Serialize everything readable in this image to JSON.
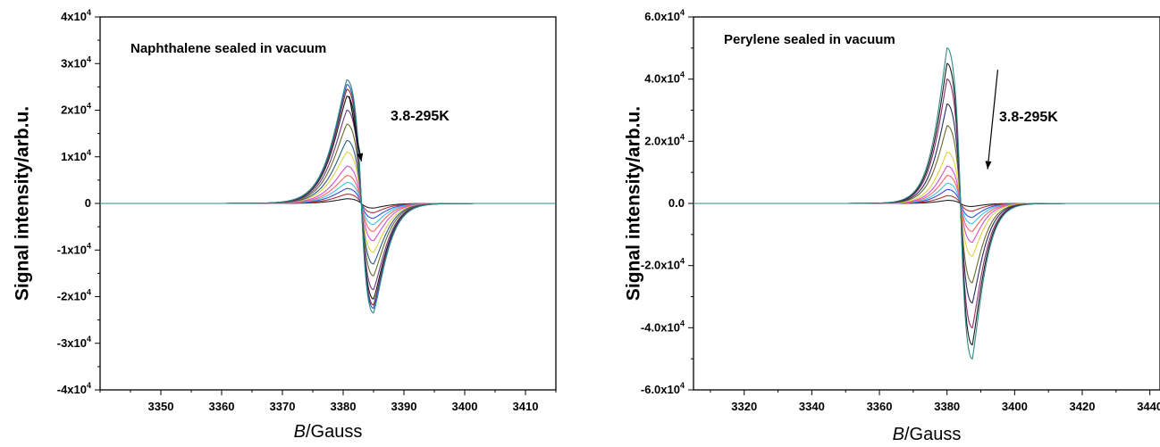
{
  "chart_data": [
    {
      "type": "line",
      "annotation": "Naphthalene sealed in vacuum",
      "temperature_label": "3.8-295K",
      "xlabel_italic": "B",
      "xlabel_rest": "/Gauss",
      "ylabel": "Signal intensity/arb.u.",
      "xlim": [
        3340,
        3415
      ],
      "ylim": [
        -40000,
        40000
      ],
      "x_ticks": [
        3350,
        3360,
        3370,
        3380,
        3390,
        3400,
        3410
      ],
      "y_ticks": [
        {
          "value": 40000,
          "mantissa": "4x10",
          "exp": "4"
        },
        {
          "value": 30000,
          "mantissa": "3x10",
          "exp": "4"
        },
        {
          "value": 20000,
          "mantissa": "2x10",
          "exp": "4"
        },
        {
          "value": 10000,
          "mantissa": "1x10",
          "exp": "4"
        },
        {
          "value": 0,
          "mantissa": "0",
          "exp": ""
        },
        {
          "value": -10000,
          "mantissa": "-1x10",
          "exp": "4"
        },
        {
          "value": -20000,
          "mantissa": "-2x10",
          "exp": "4"
        },
        {
          "value": -30000,
          "mantissa": "-3x10",
          "exp": "4"
        },
        {
          "value": -40000,
          "mantissa": "-4x10",
          "exp": "4"
        }
      ],
      "line_center": 3383,
      "peak_x": 3380.6,
      "trough_x": 3385.0,
      "width_left": 6.5,
      "width_right": 5.5,
      "arrow_from": [
        3381,
        23000
      ],
      "arrow_to": [
        3383,
        9000
      ],
      "series": [
        {
          "peak": 26500,
          "trough": -23500,
          "color": "#2e8b87"
        },
        {
          "peak": 25500,
          "trough": -22500,
          "color": "#2d4db5"
        },
        {
          "peak": 24500,
          "trough": -21800,
          "color": "#8a2a2a"
        },
        {
          "peak": 23000,
          "trough": -20500,
          "color": "#1a1a1a"
        },
        {
          "peak": 20000,
          "trough": -18500,
          "color": "#6b3a7a"
        },
        {
          "peak": 17000,
          "trough": -15500,
          "color": "#6b6b2a"
        },
        {
          "peak": 13500,
          "trough": -13000,
          "color": "#2a5a8a"
        },
        {
          "peak": 11000,
          "trough": -10500,
          "color": "#e0d040"
        },
        {
          "peak": 8000,
          "trough": -8000,
          "color": "#d050d0"
        },
        {
          "peak": 6000,
          "trough": -6000,
          "color": "#ff6060"
        },
        {
          "peak": 4500,
          "trough": -4500,
          "color": "#40c0e0"
        },
        {
          "peak": 3200,
          "trough": -3200,
          "color": "#3050e0"
        },
        {
          "peak": 2000,
          "trough": -2000,
          "color": "#b03030"
        },
        {
          "peak": 1000,
          "trough": -1000,
          "color": "#222222"
        }
      ]
    },
    {
      "type": "line",
      "annotation": "Perylene sealed in vacuum",
      "temperature_label": "3.8-295K",
      "xlabel_italic": "B",
      "xlabel_rest": "/Gauss",
      "ylabel": "Signal intensity/arb.u.",
      "xlim": [
        3305,
        3443
      ],
      "ylim": [
        -60000,
        60000
      ],
      "x_ticks": [
        3320,
        3340,
        3360,
        3380,
        3400,
        3420,
        3440
      ],
      "y_ticks": [
        {
          "value": 60000,
          "mantissa": "6.0x10",
          "exp": "4"
        },
        {
          "value": 40000,
          "mantissa": "4.0x10",
          "exp": "4"
        },
        {
          "value": 20000,
          "mantissa": "2.0x10",
          "exp": "4"
        },
        {
          "value": 0,
          "mantissa": "0.0",
          "exp": ""
        },
        {
          "value": -20000,
          "mantissa": "-2.0x10",
          "exp": "4"
        },
        {
          "value": -40000,
          "mantissa": "-4.0x10",
          "exp": "4"
        },
        {
          "value": -60000,
          "mantissa": "-6.0x10",
          "exp": "4"
        }
      ],
      "line_center": 3384,
      "peak_x": 3380.0,
      "trough_x": 3387.5,
      "width_left": 7.0,
      "width_right": 7.5,
      "arrow_from": [
        3395,
        43000
      ],
      "arrow_to": [
        3392,
        11000
      ],
      "series": [
        {
          "peak": 50000,
          "trough": -50000,
          "color": "#2e8b87"
        },
        {
          "peak": 45000,
          "trough": -45500,
          "color": "#1a1a1a"
        },
        {
          "peak": 40000,
          "trough": -40000,
          "color": "#8a2a6a"
        },
        {
          "peak": 32000,
          "trough": -32000,
          "color": "#2a2a6a"
        },
        {
          "peak": 25000,
          "trough": -25500,
          "color": "#6b6b2a"
        },
        {
          "peak": 16500,
          "trough": -17000,
          "color": "#e0d040"
        },
        {
          "peak": 12000,
          "trough": -12500,
          "color": "#d050d0"
        },
        {
          "peak": 9000,
          "trough": -9000,
          "color": "#ff6060"
        },
        {
          "peak": 6500,
          "trough": -6500,
          "color": "#40c0e0"
        },
        {
          "peak": 4500,
          "trough": -4500,
          "color": "#3050e0"
        },
        {
          "peak": 2500,
          "trough": -2500,
          "color": "#b03030"
        },
        {
          "peak": 1000,
          "trough": -1000,
          "color": "#222222"
        }
      ]
    }
  ]
}
